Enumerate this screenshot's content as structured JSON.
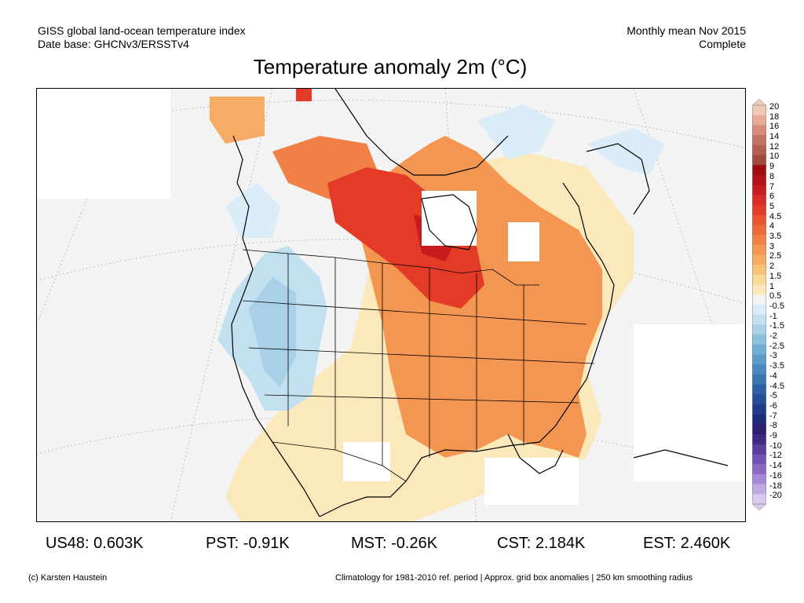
{
  "header": {
    "line1_left": "GISS global land-ocean temperature index",
    "line2_left": "Date base: GHCNv3/ERSSTv4",
    "line1_right": "Monthly mean Nov 2015",
    "line2_right": "Complete"
  },
  "title": "Temperature anomaly 2m (°C)",
  "colorbar": {
    "labels": [
      "20",
      "18",
      "16",
      "14",
      "12",
      "10",
      "9",
      "8",
      "7",
      "6",
      "5",
      "4.5",
      "4",
      "3.5",
      "3",
      "2.5",
      "2",
      "1.5",
      "1",
      "0.5",
      "-0.5",
      "-1",
      "-1.5",
      "-2",
      "-2.5",
      "-3",
      "-3.5",
      "-4",
      "-4.5",
      "-5",
      "-6",
      "-7",
      "-8",
      "-9",
      "-10",
      "-12",
      "-14",
      "-16",
      "-18",
      "-20"
    ],
    "colors": [
      "#f2c7b5",
      "#e8ab95",
      "#d88c78",
      "#c47462",
      "#b25e50",
      "#9e4a3c",
      "#9e0e10",
      "#b01416",
      "#c81b1e",
      "#d92a25",
      "#e43b28",
      "#ea5430",
      "#ee6a39",
      "#f08045",
      "#f39652",
      "#f6ac64",
      "#f8c37b",
      "#fad897",
      "#fbe9bc",
      "#f2f2f2",
      "#d9ecf7",
      "#c2e0f0",
      "#a8d1e8",
      "#8cc0df",
      "#70aed5",
      "#5b9cc9",
      "#4989bf",
      "#3b75b2",
      "#2f60a5",
      "#264d98",
      "#1f3c8a",
      "#1d2d7c",
      "#2a1f72",
      "#3f2a86",
      "#5a3e9e",
      "#7253b4",
      "#8b6ac6",
      "#a589d5",
      "#bfa9e3",
      "#d8c9ef"
    ]
  },
  "map": {
    "colors": {
      "missing": "#ffffff",
      "land_bg": "#f3f3f3",
      "coast": "#000000",
      "borders": "#000000",
      "graticule": "#bdbdbd"
    }
  },
  "stats": {
    "us48": "US48: 0.603K",
    "pst": "PST: -0.91K",
    "mst": "MST: -0.26K",
    "cst": "CST: 2.184K",
    "est": "EST: 2.460K"
  },
  "footer": {
    "left": "(c) Karsten Haustein",
    "right": "Climatology for 1981-2010 ref. period | Approx. grid box anomalies | 250 km smoothing radius"
  }
}
